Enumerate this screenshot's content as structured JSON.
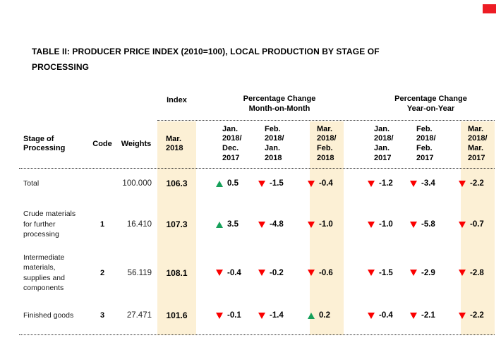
{
  "title_lines": [
    "TABLE II: PRODUCER PRICE INDEX (2010=100), LOCAL PRODUCTION BY STAGE OF",
    "PROCESSING"
  ],
  "table": {
    "head": {
      "index_label": "Index",
      "mom_group": [
        "Percentage Change",
        "Month-on-Month"
      ],
      "yoy_group": [
        "Percentage Change",
        "Year-on-Year"
      ],
      "stage": [
        "Stage of",
        "Processing"
      ],
      "code": "Code",
      "weights": "Weights",
      "index_period": [
        "Mar.",
        "2018"
      ],
      "mom_periods": [
        [
          "Jan.",
          "2018/",
          "Dec.",
          "2017"
        ],
        [
          "Feb.",
          "2018/",
          "Jan.",
          "2018"
        ],
        [
          "Mar.",
          "2018/",
          "Feb.",
          "2018"
        ]
      ],
      "yoy_periods": [
        [
          "Jan.",
          "2018/",
          "Jan.",
          "2017"
        ],
        [
          "Feb.",
          "2018/",
          "Feb.",
          "2017"
        ],
        [
          "Mar.",
          "2018/",
          "Mar.",
          "2017"
        ]
      ]
    },
    "rows": [
      {
        "stage": [
          "Total"
        ],
        "code": "",
        "weights": "100.000",
        "index": "106.3",
        "mom": [
          {
            "dir": "up",
            "value": "0.5"
          },
          {
            "dir": "down",
            "value": "-1.5"
          },
          {
            "dir": "down",
            "value": "-0.4"
          }
        ],
        "yoy": [
          {
            "dir": "down",
            "value": "-1.2"
          },
          {
            "dir": "down",
            "value": "-3.4"
          },
          {
            "dir": "down",
            "value": "-2.2"
          }
        ]
      },
      {
        "stage": [
          "Crude materials",
          "for further",
          "processing"
        ],
        "code": "1",
        "weights": "16.410",
        "index": "107.3",
        "mom": [
          {
            "dir": "up",
            "value": "3.5"
          },
          {
            "dir": "down",
            "value": "-4.8"
          },
          {
            "dir": "down",
            "value": "-1.0"
          }
        ],
        "yoy": [
          {
            "dir": "down",
            "value": "-1.0"
          },
          {
            "dir": "down",
            "value": "-5.8"
          },
          {
            "dir": "down",
            "value": "-0.7"
          }
        ]
      },
      {
        "stage": [
          "Intermediate",
          "materials,",
          "supplies and",
          "components"
        ],
        "code": "2",
        "weights": "56.119",
        "index": "108.1",
        "mom": [
          {
            "dir": "down",
            "value": "-0.4"
          },
          {
            "dir": "down",
            "value": "-0.2"
          },
          {
            "dir": "down",
            "value": "-0.6"
          }
        ],
        "yoy": [
          {
            "dir": "down",
            "value": "-1.5"
          },
          {
            "dir": "down",
            "value": "-2.9"
          },
          {
            "dir": "down",
            "value": "-2.8"
          }
        ]
      },
      {
        "stage": [
          "Finished goods"
        ],
        "code": "3",
        "weights": "27.471",
        "index": "101.6",
        "mom": [
          {
            "dir": "down",
            "value": "-0.1"
          },
          {
            "dir": "down",
            "value": "-1.4"
          },
          {
            "dir": "up",
            "value": "0.2"
          }
        ],
        "yoy": [
          {
            "dir": "down",
            "value": "-0.4"
          },
          {
            "dir": "down",
            "value": "-2.1"
          },
          {
            "dir": "down",
            "value": "-2.2"
          }
        ]
      }
    ]
  },
  "colors": {
    "highlight": "#FCF0D5",
    "up": "#16A05A",
    "down": "#FB0000",
    "marker": "#ED1C24"
  }
}
